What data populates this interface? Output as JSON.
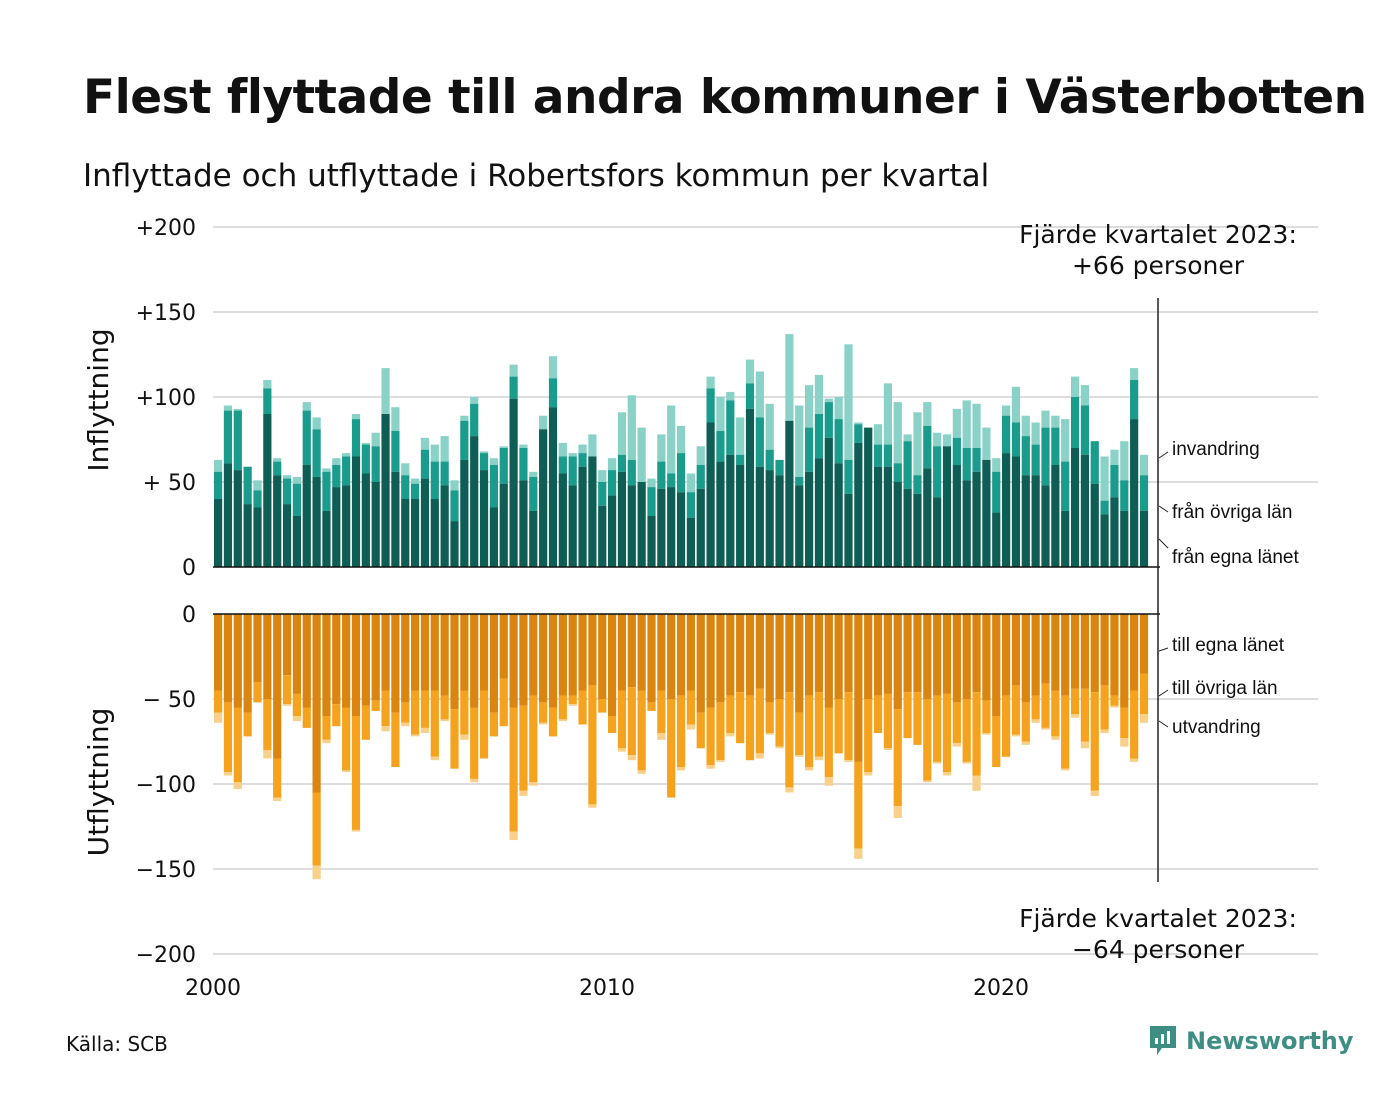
{
  "title": "Flest flyttade till andra kommuner i Västerbotten",
  "subtitle": "Inflyttade och utflyttade i Robertsfors kommun per kvartal",
  "source": "Källa: SCB",
  "brand": {
    "name": "Newsworthy",
    "icon": "newsworthy-logo-icon"
  },
  "colors": {
    "in_own": "#0f5e55",
    "in_other": "#1a9c8c",
    "in_immigration": "#8ad2c8",
    "out_own": "#d98510",
    "out_other": "#f5a31f",
    "out_emigration": "#f8d08a",
    "grid": "#dddddd",
    "text": "#111111"
  },
  "annotations": {
    "top_line1": "Fjärde kvartalet 2023:",
    "top_line2": "+66 personer",
    "bottom_line1": "Fjärde kvartalet 2023:",
    "bottom_line2": "−64 personer"
  },
  "chart_data": {
    "type": "bar",
    "stacked": true,
    "x_label": "",
    "x_ticks": [
      "2000",
      "2010",
      "2020"
    ],
    "panels": [
      {
        "name": "Inflyttning",
        "y_ticks": [
          "+200",
          "+150",
          "+100",
          "+ 50",
          "0"
        ],
        "y_range": [
          0,
          200
        ],
        "series": [
          {
            "name": "från egna länet",
            "values": [
              40,
              61,
              57,
              37,
              35,
              90,
              54,
              37,
              30,
              60,
              53,
              33,
              47,
              48,
              65,
              55,
              50,
              90,
              56,
              40,
              40,
              52,
              40,
              48,
              27,
              63,
              77,
              57,
              35,
              49,
              99,
              51,
              33,
              81,
              94,
              55,
              48,
              59,
              65,
              36,
              42,
              56,
              48,
              50,
              30,
              46,
              47,
              44,
              29,
              46,
              85,
              62,
              66,
              60,
              93,
              59,
              57,
              54,
              86,
              48,
              56,
              64,
              76,
              61,
              43,
              73,
              88,
              59,
              59,
              50,
              46,
              43,
              58,
              41,
              71,
              60,
              51,
              56,
              63,
              32,
              67,
              65,
              54,
              54,
              48,
              60,
              33,
              70,
              66,
              49,
              31,
              41,
              33,
              87,
              33
            ],
            "totals": [
              63,
              95,
              93,
              59,
              51,
              110,
              64,
              54,
              53,
              97,
              88,
              58,
              64,
              67,
              90,
              73,
              79,
              117,
              94,
              61,
              52,
              76,
              72,
              77,
              51,
              89,
              100,
              68,
              64,
              71,
              119,
              72,
              56,
              89,
              124,
              73,
              67,
              72,
              78,
              57,
              64,
              91,
              101,
              82,
              52,
              78,
              95,
              83,
              55,
              71,
              112,
              100,
              103,
              88,
              122,
              115,
              96,
              63,
              137,
              95,
              107,
              113,
              99,
              100,
              131,
              85,
              82,
              84,
              108,
              97,
              78,
              91,
              97,
              79,
              78,
              93,
              98,
              96,
              82,
              64,
              95,
              106,
              89,
              85,
              92,
              89,
              87,
              112,
              107,
              74,
              65,
              69,
              74,
              117,
              66
            ]
          },
          {
            "name": "från övriga län",
            "values": [
              16,
              31,
              35,
              22,
              10,
              15,
              8,
              15,
              19,
              32,
              28,
              23,
              13,
              17,
              22,
              17,
              21,
              0,
              24,
              14,
              9,
              17,
              22,
              14,
              18,
              23,
              19,
              10,
              25,
              21,
              13,
              19,
              20,
              0,
              17,
              10,
              17,
              8,
              0,
              14,
              15,
              10,
              15,
              0,
              17,
              16,
              8,
              23,
              15,
              14,
              20,
              18,
              32,
              6,
              15,
              29,
              12,
              10,
              0,
              5,
              26,
              26,
              21,
              26,
              20,
              11,
              33,
              13,
              13,
              11,
              28,
              11,
              25,
              30,
              0,
              16,
              19,
              14,
              0,
              24,
              22,
              20,
              23,
              18,
              34,
              22,
              29,
              30,
              29,
              28,
              8,
              19,
              18,
              23,
              21
            ],
            "stack_top": [
              56,
              92,
              92,
              59,
              45,
              105,
              62,
              52,
              49,
              92,
              81,
              56,
              60,
              65,
              87,
              72,
              71,
              90,
              80,
              54,
              49,
              69,
              62,
              62,
              45,
              86,
              96,
              67,
              60,
              70,
              112,
              70,
              53,
              81,
              111,
              65,
              65,
              67,
              65,
              50,
              57,
              66,
              63,
              50,
              47,
              62,
              55,
              67,
              44,
              60,
              105,
              80,
              98,
              66,
              108,
              88,
              69,
              64,
              86,
              53,
              82,
              90,
              97,
              87,
              63,
              84,
              121,
              72,
              72,
              61,
              74,
              54,
              83,
              71,
              71,
              76,
              70,
              70,
              63,
              56,
              89,
              85,
              77,
              72,
              82,
              82,
              62,
              100,
              95,
              77,
              39,
              60,
              51,
              110,
              54
            ]
          },
          {
            "name": "invandring",
            "values": []
          }
        ]
      },
      {
        "name": "Utflyttning",
        "y_ticks": [
          "0",
          "− 50",
          "−100",
          "−150",
          "−200"
        ],
        "y_range": [
          -200,
          0
        ],
        "series": [
          {
            "name": "till egna länet",
            "values": [
              45,
              52,
              55,
              58,
              40,
              50,
              85,
              36,
              47,
              55,
              105,
              60,
              53,
              55,
              60,
              54,
              51,
              45,
              58,
              52,
              45,
              45,
              45,
              48,
              56,
              45,
              55,
              45,
              58,
              38,
              55,
              54,
              48,
              52,
              55,
              48,
              48,
              45,
              42,
              50,
              60,
              45,
              43,
              45,
              52,
              45,
              50,
              48,
              45,
              58,
              55,
              52,
              48,
              46,
              48,
              44,
              52,
              50,
              46,
              58,
              48,
              46,
              55,
              50,
              46,
              87,
              50,
              48,
              47,
              56,
              46,
              46,
              50,
              48,
              47,
              52,
              50,
              46,
              51,
              60,
              48,
              42,
              52,
              48,
              41,
              45,
              48,
              44,
              44,
              46,
              42,
              48,
              55,
              45,
              35
            ],
            "stack_top": [
              58,
              93,
              99,
              72,
              52,
              80,
              108,
              53,
              60,
              67,
              148,
              74,
              66,
              92,
              127,
              74,
              57,
              66,
              90,
              64,
              71,
              67,
              84,
              62,
              91,
              71,
              97,
              85,
              72,
              66,
              128,
              104,
              99,
              64,
              72,
              62,
              53,
              65,
              112,
              58,
              70,
              79,
              83,
              92,
              57,
              70,
              108,
              90,
              65,
              79,
              89,
              86,
              70,
              76,
              86,
              82,
              70,
              78,
              102,
              83,
              90,
              84,
              96,
              82,
              86,
              138,
              93,
              70,
              79,
              113,
              73,
              77,
              98,
              87,
              93,
              76,
              87,
              95,
              70,
              90,
              84,
              71,
              75,
              62,
              67,
              72,
              91,
              59,
              75,
              104,
              68,
              54,
              73,
              85,
              59
            ]
          },
          {
            "name": "till övriga län",
            "values": [],
            "totals": [
              64,
              95,
              103,
              72,
              52,
              85,
              110,
              54,
              63,
              67,
              156,
              76,
              66,
              93,
              128,
              74,
              57,
              69,
              90,
              66,
              72,
              70,
              86,
              63,
              91,
              74,
              99,
              85,
              72,
              66,
              133,
              107,
              101,
              65,
              72,
              63,
              54,
              65,
              114,
              58,
              70,
              81,
              86,
              94,
              57,
              74,
              108,
              92,
              68,
              79,
              91,
              87,
              72,
              76,
              86,
              85,
              71,
              79,
              105,
              84,
              92,
              86,
              101,
              82,
              87,
              144,
              95,
              70,
              80,
              120,
              73,
              77,
              99,
              88,
              95,
              78,
              88,
              104,
              71,
              90,
              84,
              72,
              77,
              64,
              68,
              74,
              92,
              61,
              79,
              107,
              70,
              55,
              78,
              87,
              64
            ]
          },
          {
            "name": "utvandring",
            "values": []
          }
        ]
      }
    ],
    "series_labels": {
      "in": [
        "invandring",
        "från övriga län",
        "från egna länet"
      ],
      "out": [
        "till egna länet",
        "till övriga län",
        "utvandring"
      ]
    }
  }
}
